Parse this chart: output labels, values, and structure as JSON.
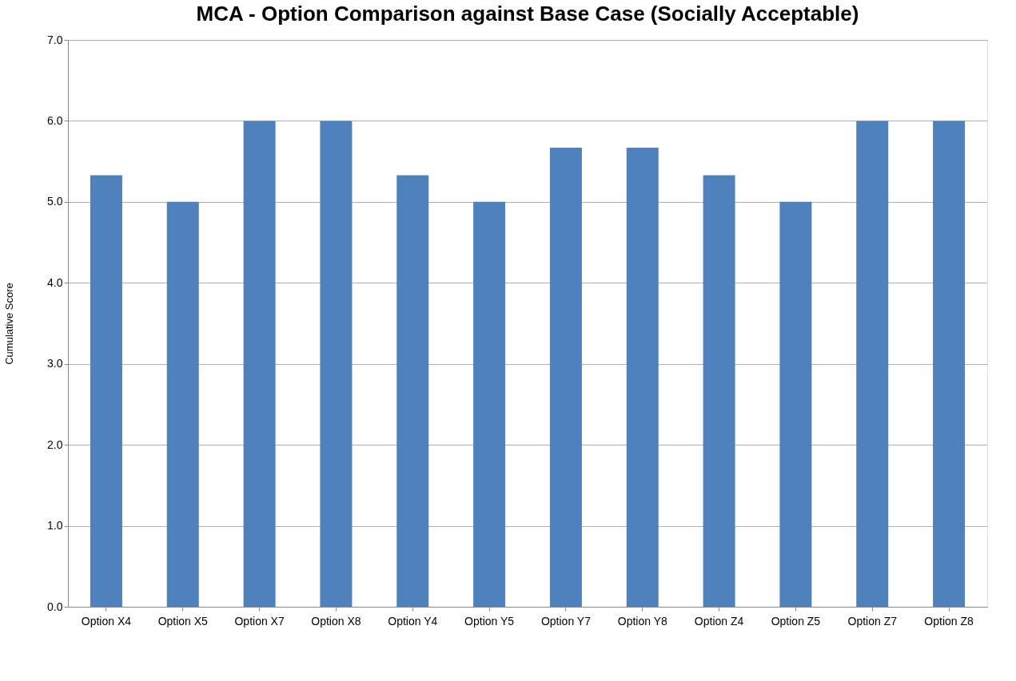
{
  "chart_data": {
    "type": "bar",
    "title": "MCA - Option Comparison against Base Case (Socially Acceptable)",
    "ylabel": "Cumulative Score",
    "categories": [
      "Option X4",
      "Option X5",
      "Option X7",
      "Option X8",
      "Option Y4",
      "Option Y5",
      "Option Y7",
      "Option Y8",
      "Option Z4",
      "Option Z5",
      "Option Z7",
      "Option Z8"
    ],
    "values": [
      5.33,
      5.0,
      6.0,
      6.0,
      5.33,
      5.0,
      5.67,
      5.67,
      5.33,
      5.0,
      6.0,
      6.0
    ],
    "color": "#4f81bd",
    "ylim": [
      0,
      7
    ],
    "yticks": [
      {
        "value": 0,
        "label": "0.0"
      },
      {
        "value": 1,
        "label": "1.0"
      },
      {
        "value": 2,
        "label": "2.0"
      },
      {
        "value": 3,
        "label": "3.0"
      },
      {
        "value": 4,
        "label": "4.0"
      },
      {
        "value": 5,
        "label": "5.0"
      },
      {
        "value": 6,
        "label": "6.0"
      },
      {
        "value": 7,
        "label": "7.0"
      }
    ],
    "grid": "y"
  }
}
